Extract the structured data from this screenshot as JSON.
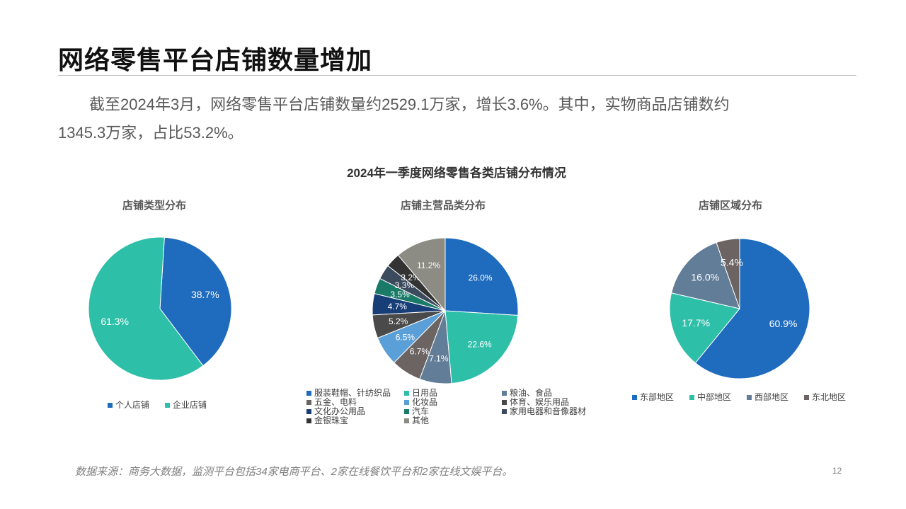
{
  "title": "网络零售平台店铺数量增加",
  "paragraph": {
    "line1": "截至2024年3月，网络零售平台店铺数量约2529.1万家，增长3.6%。其中，实物商品店铺数约",
    "line2": "1345.3万家，占比53.2%。"
  },
  "footer": {
    "source": "数据来源：商务大数据，监测平台包括34家电商平台、2家在线餐饮平台和2家在线文娱平台。",
    "page_number": "12"
  },
  "chart_data": {
    "title": "2024年一季度网络零售各类店铺分布情况",
    "charts": [
      {
        "type": "pie",
        "title": "店铺类型分布",
        "start_angle_deg": 3.6,
        "slices": [
          {
            "label": "个人店铺",
            "value": 38.7,
            "display": "38.7%",
            "color": "#1f6bbd"
          },
          {
            "label": "企业店铺",
            "value": 61.3,
            "display": "61.3%",
            "color": "#2ebfa8"
          }
        ],
        "legend_placement": "bottom"
      },
      {
        "type": "pie",
        "title": "店铺主营品类分布",
        "start_angle_deg": 0,
        "slices": [
          {
            "label": "服装鞋帽、针纺织品",
            "value": 26.0,
            "display": "26.0%",
            "color": "#1f6bbd"
          },
          {
            "label": "日用品",
            "value": 22.6,
            "display": "22.6%",
            "color": "#2ebfa8"
          },
          {
            "label": "粮油、食品",
            "value": 7.1,
            "display": "7.1%",
            "color": "#627d98"
          },
          {
            "label": "五金、电料",
            "value": 6.7,
            "display": "6.7%",
            "color": "#6b6462"
          },
          {
            "label": "化妆品",
            "value": 6.5,
            "display": "6.5%",
            "color": "#5a9fd8"
          },
          {
            "label": "体育、娱乐用品",
            "value": 5.2,
            "display": "5.2%",
            "color": "#4a4a4a"
          },
          {
            "label": "文化办公用品",
            "value": 4.7,
            "display": "4.7%",
            "color": "#183e78"
          },
          {
            "label": "汽车",
            "value": 3.5,
            "display": "3.5%",
            "color": "#1a7a68"
          },
          {
            "label": "家用电器和音像器材",
            "value": 3.3,
            "display": "3.3%",
            "color": "#3b4a5c"
          },
          {
            "label": "金银珠宝",
            "value": 3.2,
            "display": "3.2%",
            "color": "#333333"
          },
          {
            "label": "其他",
            "value": 11.2,
            "display": "11.2%",
            "color": "#8c8c84"
          }
        ],
        "legend_placement": "bottom"
      },
      {
        "type": "pie",
        "title": "店铺区域分布",
        "start_angle_deg": 0,
        "slices": [
          {
            "label": "东部地区",
            "value": 60.9,
            "display": "60.9%",
            "color": "#1f6bbd"
          },
          {
            "label": "中部地区",
            "value": 17.7,
            "display": "17.7%",
            "color": "#2ebfa8"
          },
          {
            "label": "西部地区",
            "value": 16.0,
            "display": "16.0%",
            "color": "#627d98"
          },
          {
            "label": "东北地区",
            "value": 5.4,
            "display": "5.4%",
            "color": "#6b6462"
          }
        ],
        "legend_placement": "bottom"
      }
    ]
  }
}
